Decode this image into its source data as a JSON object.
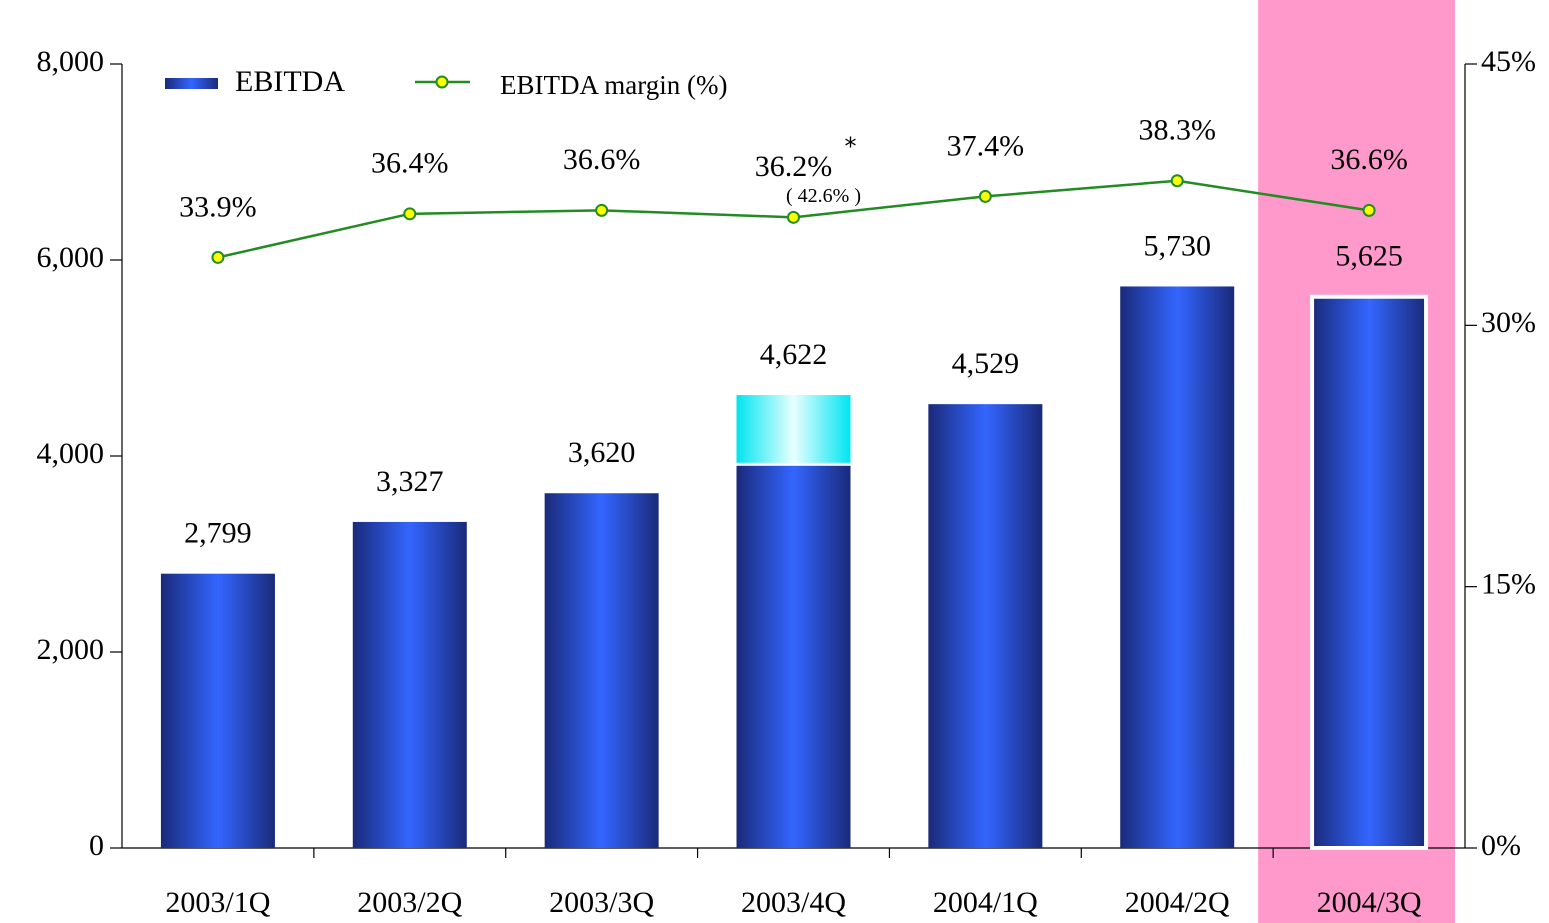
{
  "chart_data": {
    "type": "bar_line",
    "categories": [
      "2003/1Q",
      "2003/2Q",
      "2003/3Q",
      "2003/4Q",
      "2004/1Q",
      "2004/2Q",
      "2004/3Q"
    ],
    "series": [
      {
        "name": "EBITDA",
        "color": "#3366ff",
        "values": [
          2799,
          3327,
          3620,
          3900,
          4529,
          5730,
          5625
        ]
      },
      {
        "color": "#66ffff",
        "values": [
          null,
          null,
          null,
          722,
          null,
          null,
          null
        ]
      },
      {
        "name": "EBITDA margin (%)",
        "color": "#228b22",
        "marker_color": "#ffff00",
        "axis": "y2",
        "values": [
          33.9,
          36.4,
          36.6,
          36.2,
          37.4,
          38.3,
          36.6
        ],
        "value_labels": [
          "33.9%",
          "36.4%",
          "36.6%",
          "36.2%",
          "37.4%",
          "38.3%",
          "36.6%"
        ]
      }
    ],
    "totals": {
      "values": [
        2799,
        3327,
        3620,
        4622,
        4529,
        5730,
        5625
      ],
      "value_labels": [
        "2,799",
        "3,327",
        "3,620",
        "4,622",
        "4,529",
        "5,730",
        "5,625"
      ]
    },
    "annotations": [
      "*",
      "( 42.6% )"
    ],
    "highlight_index": 6,
    "highlight_color": "#ff99cc",
    "ylim": [
      0,
      8000
    ],
    "yticks": [
      0,
      {
        "value": 2000,
        "label": "2,000"
      },
      {
        "value": 4000,
        "label": "4,000"
      },
      {
        "value": 6000,
        "label": "6,000"
      },
      {
        "value": 8000,
        "label": "8,000"
      }
    ],
    "y2lim": [
      0,
      45
    ],
    "y2ticks": [
      {
        "value": 0,
        "label": "0%"
      },
      {
        "value": 15,
        "label": "15%"
      },
      {
        "value": 30,
        "label": "30%"
      },
      {
        "value": 45,
        "label": "45%"
      }
    ],
    "legend": "top-left",
    "grid": false
  }
}
